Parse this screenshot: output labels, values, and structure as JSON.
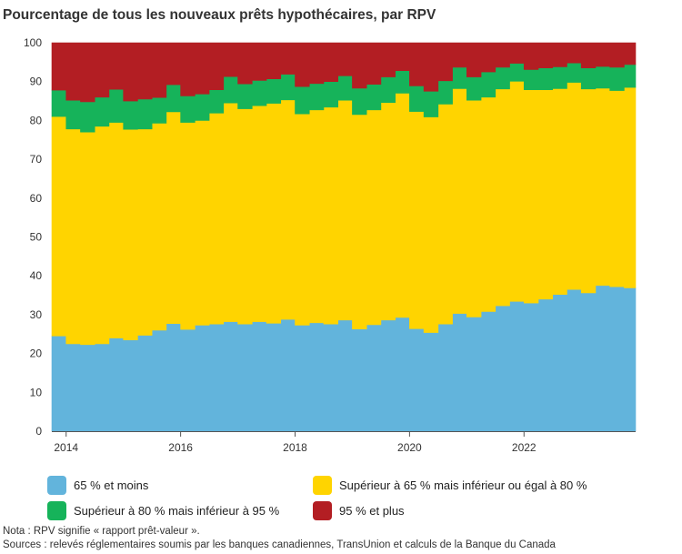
{
  "chart_data": {
    "type": "area",
    "title": "Pourcentage de tous les nouveaux prêts hypothécaires, par RPV",
    "stacked": true,
    "ylim": [
      0,
      100
    ],
    "yticks": [
      0,
      10,
      20,
      30,
      40,
      50,
      60,
      70,
      80,
      90,
      100
    ],
    "xlim": [
      2013.75,
      2023.95
    ],
    "xticks": [
      2014,
      2016,
      2018,
      2020,
      2022
    ],
    "x": [
      2013.75,
      2014.0,
      2014.25,
      2014.5,
      2014.75,
      2015.0,
      2015.25,
      2015.5,
      2015.75,
      2016.0,
      2016.25,
      2016.5,
      2016.75,
      2017.0,
      2017.25,
      2017.5,
      2017.75,
      2018.0,
      2018.25,
      2018.5,
      2018.75,
      2019.0,
      2019.25,
      2019.5,
      2019.75,
      2020.0,
      2020.25,
      2020.5,
      2020.75,
      2021.0,
      2021.25,
      2021.5,
      2021.75,
      2022.0,
      2022.25,
      2022.5,
      2022.75,
      2023.0,
      2023.25,
      2023.5,
      2023.75
    ],
    "series": [
      {
        "name": "65 % et moins",
        "color": "#62b4dc",
        "values": [
          24.5,
          22.5,
          22.3,
          22.5,
          24.0,
          23.5,
          24.7,
          26.0,
          27.7,
          26.2,
          27.3,
          27.6,
          28.2,
          27.6,
          28.2,
          27.8,
          28.8,
          27.3,
          27.9,
          27.6,
          28.6,
          26.3,
          27.4,
          28.6,
          29.3,
          26.4,
          25.4,
          27.6,
          30.3,
          29.4,
          30.8,
          32.3,
          33.4,
          33.0,
          34.0,
          35.2,
          36.5,
          35.6,
          37.5,
          37.2,
          36.9
        ]
      },
      {
        "name": "Supérieur à 65 % mais inférieur ou égal à 80 %",
        "color": "#ffd400",
        "values": [
          56.5,
          55.3,
          54.7,
          56.0,
          55.5,
          54.2,
          53.1,
          53.3,
          54.5,
          53.3,
          52.7,
          54.3,
          56.3,
          55.4,
          55.6,
          56.6,
          56.5,
          54.4,
          54.8,
          55.8,
          56.6,
          55.2,
          55.3,
          56.0,
          57.7,
          55.9,
          55.5,
          56.6,
          57.9,
          55.8,
          55.2,
          55.8,
          56.7,
          54.9,
          53.9,
          53.0,
          53.3,
          52.5,
          50.8,
          50.5,
          51.6
        ]
      },
      {
        "name": "Supérieur à 80 % mais inférieur à 95 %",
        "color": "#16b35a",
        "values": [
          6.8,
          7.4,
          7.8,
          7.5,
          8.5,
          7.3,
          7.7,
          6.6,
          7.0,
          6.8,
          6.8,
          6.0,
          6.8,
          6.4,
          6.5,
          6.3,
          6.6,
          7.0,
          6.8,
          6.6,
          6.3,
          6.8,
          6.6,
          6.6,
          5.8,
          6.6,
          6.6,
          6.0,
          5.5,
          6.0,
          6.5,
          5.6,
          4.6,
          5.2,
          5.6,
          5.6,
          5.0,
          5.4,
          5.6,
          6.0,
          5.9
        ]
      },
      {
        "name": "95 % et plus",
        "color": "#b31e23",
        "values": [
          12.2,
          14.8,
          15.2,
          14.0,
          12.0,
          15.0,
          14.5,
          14.1,
          10.8,
          13.7,
          13.2,
          12.1,
          8.7,
          10.6,
          9.7,
          9.3,
          8.1,
          11.3,
          10.5,
          10.0,
          8.5,
          11.7,
          10.7,
          8.8,
          7.2,
          11.1,
          12.5,
          9.8,
          6.3,
          8.8,
          7.5,
          6.3,
          5.3,
          6.9,
          6.5,
          6.2,
          5.2,
          6.5,
          6.1,
          6.3,
          5.6
        ]
      }
    ]
  },
  "legend": [
    {
      "label": "65 % et moins",
      "color": "#62b4dc"
    },
    {
      "label": "Supérieur à 65 % mais inférieur ou égal à 80 %",
      "color": "#ffd400"
    },
    {
      "label": "Supérieur à 80 % mais inférieur à 95 %",
      "color": "#16b35a"
    },
    {
      "label": "95 % et plus",
      "color": "#b31e23"
    }
  ],
  "notes": {
    "note": "Nota : RPV signifie « rapport prêt-valeur ».",
    "sources": "Sources : relevés réglementaires soumis par les banques canadiennes, TransUnion et calculs de la Banque du Canada"
  }
}
